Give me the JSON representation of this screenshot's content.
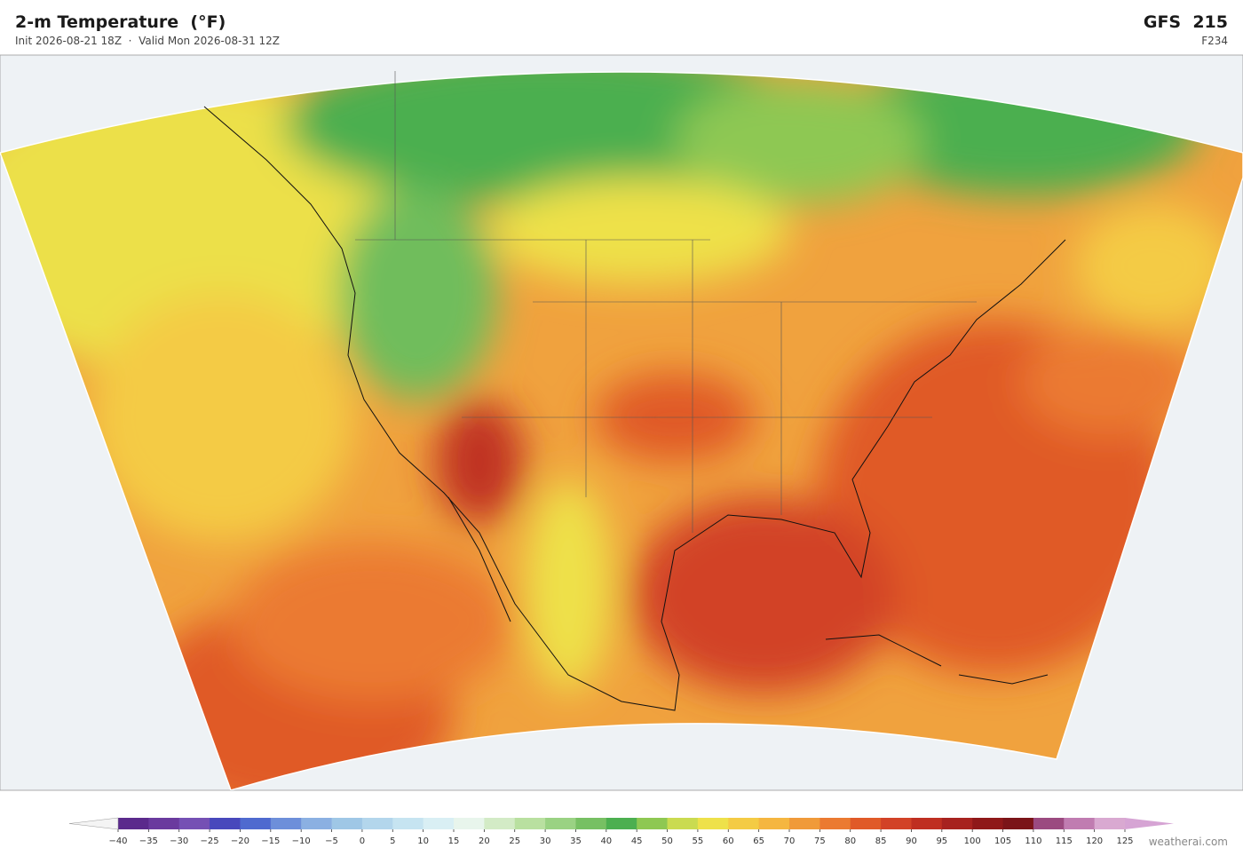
{
  "header": {
    "title": "2-m Temperature  (°F)",
    "subtitle": "Init 2026-08-21 18Z  ·  Valid Mon 2026-08-31 12Z",
    "model": "GFS  215",
    "forecast_hour": "F234"
  },
  "colorbar": {
    "ticks": [
      {
        "value": -40,
        "label": "−40"
      },
      {
        "value": -35,
        "label": "−35"
      },
      {
        "value": -30,
        "label": "−30"
      },
      {
        "value": -25,
        "label": "−25"
      },
      {
        "value": -20,
        "label": "−20"
      },
      {
        "value": -15,
        "label": "−15"
      },
      {
        "value": -10,
        "label": "−10"
      },
      {
        "value": -5,
        "label": "−5"
      },
      0,
      5,
      10,
      15,
      20,
      25,
      30,
      35,
      40,
      45,
      50,
      55,
      60,
      65,
      70,
      75,
      80,
      85,
      90,
      95,
      100,
      105,
      110,
      115,
      120,
      125
    ],
    "colors": [
      "#5b2a8c",
      "#6a3a9e",
      "#7550b4",
      "#4848bc",
      "#4f6acf",
      "#6d8fda",
      "#8bb0e2",
      "#9fc7e6",
      "#b3d6ec",
      "#c6e4f1",
      "#d9eff4",
      "#e8f5ec",
      "#d3ebc6",
      "#b9e0a0",
      "#9ad283",
      "#77c063",
      "#4caf50",
      "#8ec852",
      "#cadb50",
      "#eee14a",
      "#f4cb44",
      "#f5b640",
      "#f09a39",
      "#eb7a31",
      "#e05a28",
      "#d24227",
      "#bf2f21",
      "#a7221f",
      "#8f1819",
      "#7b1418",
      "#9b4a80",
      "#c07cb1",
      "#d9a9d1"
    ],
    "extend_colors": [
      "#f4f4f4",
      "#d6a4d4"
    ]
  },
  "credit": "weatherai.com"
}
